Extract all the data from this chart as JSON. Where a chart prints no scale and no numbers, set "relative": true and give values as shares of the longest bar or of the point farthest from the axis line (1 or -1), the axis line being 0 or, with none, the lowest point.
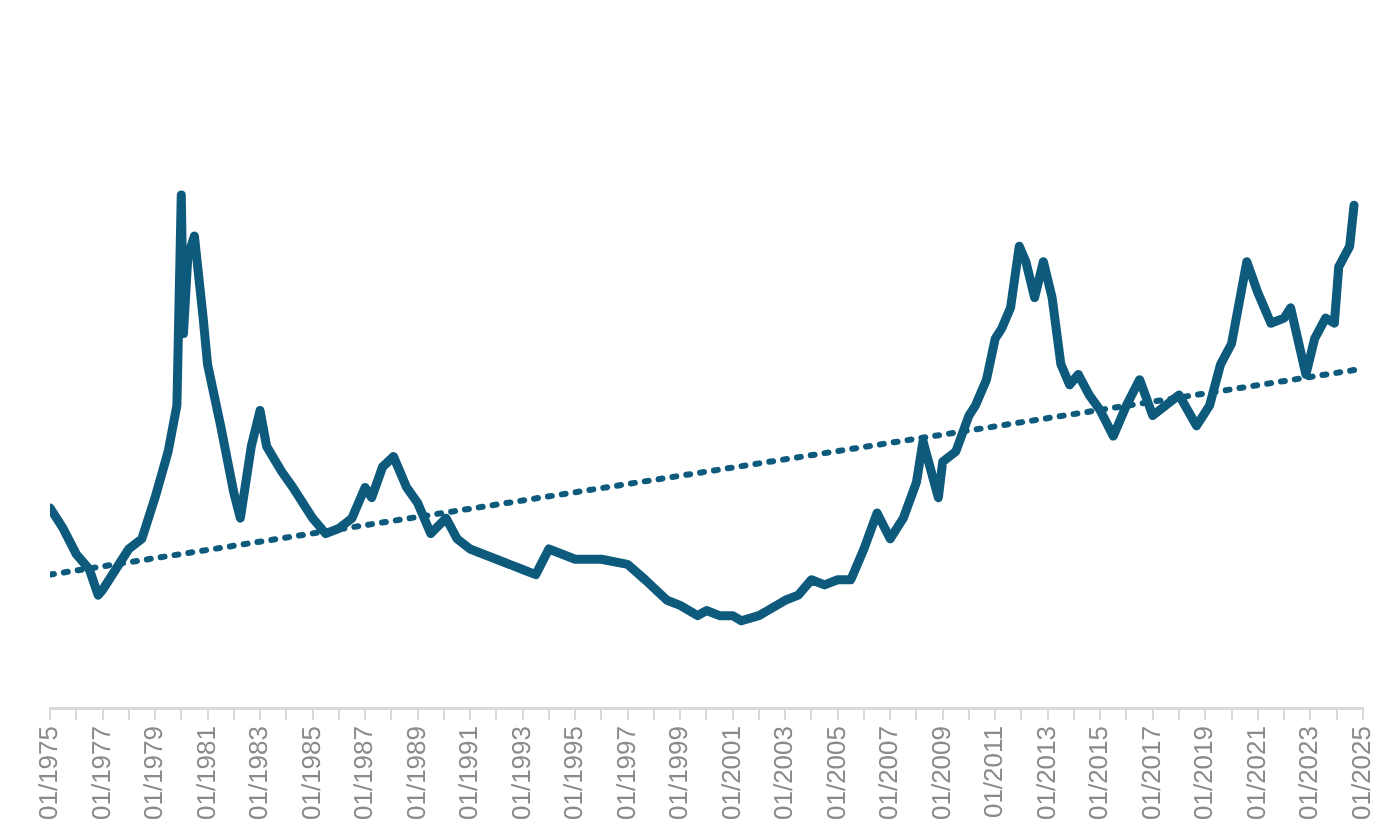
{
  "chart_data": {
    "type": "line",
    "relative": true,
    "tick_labels": "x",
    "grid": false,
    "legend": false,
    "marker": "none",
    "xlim": [
      "1975-01",
      "2025-01"
    ],
    "xticks": [
      {
        "value": "1975-01",
        "label": "01/1975"
      },
      {
        "value": "1976-01",
        "label": null
      },
      {
        "value": "1977-01",
        "label": "01/1977"
      },
      {
        "value": "1978-01",
        "label": null
      },
      {
        "value": "1979-01",
        "label": "01/1979"
      },
      {
        "value": "1980-01",
        "label": null
      },
      {
        "value": "1981-01",
        "label": "01/1981"
      },
      {
        "value": "1982-01",
        "label": null
      },
      {
        "value": "1983-01",
        "label": "01/1983"
      },
      {
        "value": "1984-01",
        "label": null
      },
      {
        "value": "1985-01",
        "label": "01/1985"
      },
      {
        "value": "1986-01",
        "label": null
      },
      {
        "value": "1987-01",
        "label": "01/1987"
      },
      {
        "value": "1988-01",
        "label": null
      },
      {
        "value": "1989-01",
        "label": "01/1989"
      },
      {
        "value": "1990-01",
        "label": null
      },
      {
        "value": "1991-01",
        "label": "01/1991"
      },
      {
        "value": "1992-01",
        "label": null
      },
      {
        "value": "1993-01",
        "label": "01/1993"
      },
      {
        "value": "1994-01",
        "label": null
      },
      {
        "value": "1995-01",
        "label": "01/1995"
      },
      {
        "value": "1996-01",
        "label": null
      },
      {
        "value": "1997-01",
        "label": "01/1997"
      },
      {
        "value": "1998-01",
        "label": null
      },
      {
        "value": "1999-01",
        "label": "01/1999"
      },
      {
        "value": "2000-01",
        "label": null
      },
      {
        "value": "2001-01",
        "label": "01/2001"
      },
      {
        "value": "2002-01",
        "label": null
      },
      {
        "value": "2003-01",
        "label": "01/2003"
      },
      {
        "value": "2004-01",
        "label": null
      },
      {
        "value": "2005-01",
        "label": "01/2005"
      },
      {
        "value": "2006-01",
        "label": null
      },
      {
        "value": "2007-01",
        "label": "01/2007"
      },
      {
        "value": "2008-01",
        "label": null
      },
      {
        "value": "2009-01",
        "label": "01/2009"
      },
      {
        "value": "2010-01",
        "label": null
      },
      {
        "value": "2011-01",
        "label": "01/2011"
      },
      {
        "value": "2012-01",
        "label": null
      },
      {
        "value": "2013-01",
        "label": "01/2013"
      },
      {
        "value": "2014-01",
        "label": null
      },
      {
        "value": "2015-01",
        "label": "01/2015"
      },
      {
        "value": "2016-01",
        "label": null
      },
      {
        "value": "2017-01",
        "label": "01/2017"
      },
      {
        "value": "2018-01",
        "label": null
      },
      {
        "value": "2019-01",
        "label": "01/2019"
      },
      {
        "value": "2020-01",
        "label": null
      },
      {
        "value": "2021-01",
        "label": "01/2021"
      },
      {
        "value": "2022-01",
        "label": null
      },
      {
        "value": "2023-01",
        "label": "01/2023"
      },
      {
        "value": "2024-01",
        "label": null
      },
      {
        "value": "2025-01",
        "label": "01/2025"
      }
    ],
    "series": [
      {
        "color": "#0e5a7c",
        "line_style": "solid",
        "x": [
          "1975-01",
          "1975-07",
          "1976-01",
          "1976-07",
          "1976-11",
          "1977-01",
          "1977-07",
          "1978-01",
          "1978-07",
          "1979-01",
          "1979-07",
          "1979-11",
          "1980-01",
          "1980-02",
          "1980-04",
          "1980-07",
          "1980-11",
          "1981-01",
          "1981-07",
          "1982-01",
          "1982-04",
          "1982-09",
          "1983-01",
          "1983-04",
          "1983-11",
          "1984-04",
          "1985-01",
          "1985-07",
          "1986-01",
          "1986-07",
          "1987-01",
          "1987-04",
          "1987-09",
          "1988-02",
          "1988-08",
          "1989-01",
          "1989-07",
          "1990-02",
          "1990-07",
          "1991-01",
          "1992-01",
          "1993-01",
          "1993-07",
          "1994-01",
          "1995-01",
          "1996-01",
          "1997-01",
          "1997-09",
          "1998-07",
          "1999-01",
          "1999-09",
          "2000-01",
          "2000-07",
          "2001-01",
          "2001-05",
          "2002-01",
          "2003-01",
          "2003-07",
          "2004-01",
          "2004-07",
          "2005-01",
          "2005-07",
          "2006-01",
          "2006-07",
          "2007-01",
          "2007-07",
          "2008-01",
          "2008-04",
          "2008-11",
          "2009-01",
          "2009-07",
          "2010-01",
          "2010-04",
          "2010-09",
          "2011-01",
          "2011-04",
          "2011-08",
          "2011-12",
          "2012-03",
          "2012-07",
          "2012-11",
          "2013-03",
          "2013-07",
          "2013-11",
          "2014-03",
          "2014-08",
          "2015-01",
          "2015-07",
          "2016-01",
          "2016-07",
          "2017-01",
          "2017-07",
          "2018-01",
          "2018-09",
          "2019-03",
          "2019-08",
          "2020-01",
          "2020-08",
          "2021-01",
          "2021-07",
          "2022-01",
          "2022-04",
          "2022-11",
          "2023-03",
          "2023-08",
          "2023-12",
          "2024-02",
          "2024-07",
          "2024-09"
        ],
        "values": [
          0.39,
          0.35,
          0.3,
          0.27,
          0.22,
          0.23,
          0.27,
          0.31,
          0.33,
          0.41,
          0.5,
          0.59,
          1.0,
          0.73,
          0.88,
          0.92,
          0.76,
          0.67,
          0.55,
          0.42,
          0.37,
          0.51,
          0.58,
          0.51,
          0.46,
          0.43,
          0.37,
          0.34,
          0.35,
          0.37,
          0.43,
          0.41,
          0.47,
          0.49,
          0.43,
          0.4,
          0.34,
          0.37,
          0.33,
          0.31,
          0.29,
          0.27,
          0.26,
          0.31,
          0.29,
          0.29,
          0.28,
          0.25,
          0.21,
          0.2,
          0.18,
          0.19,
          0.18,
          0.18,
          0.17,
          0.18,
          0.21,
          0.22,
          0.25,
          0.24,
          0.25,
          0.25,
          0.31,
          0.38,
          0.33,
          0.37,
          0.44,
          0.52,
          0.41,
          0.48,
          0.5,
          0.57,
          0.59,
          0.64,
          0.72,
          0.74,
          0.78,
          0.9,
          0.87,
          0.8,
          0.87,
          0.8,
          0.67,
          0.63,
          0.65,
          0.61,
          0.58,
          0.53,
          0.59,
          0.64,
          0.57,
          0.59,
          0.61,
          0.55,
          0.59,
          0.67,
          0.71,
          0.87,
          0.81,
          0.75,
          0.76,
          0.78,
          0.65,
          0.72,
          0.76,
          0.75,
          0.86,
          0.9,
          0.98
        ]
      },
      {
        "type": "line",
        "color": "#0e5a7c",
        "line_style": "dotted",
        "x": [
          "1975-01",
          "2024-11"
        ],
        "values": [
          0.26,
          0.66
        ]
      }
    ]
  }
}
